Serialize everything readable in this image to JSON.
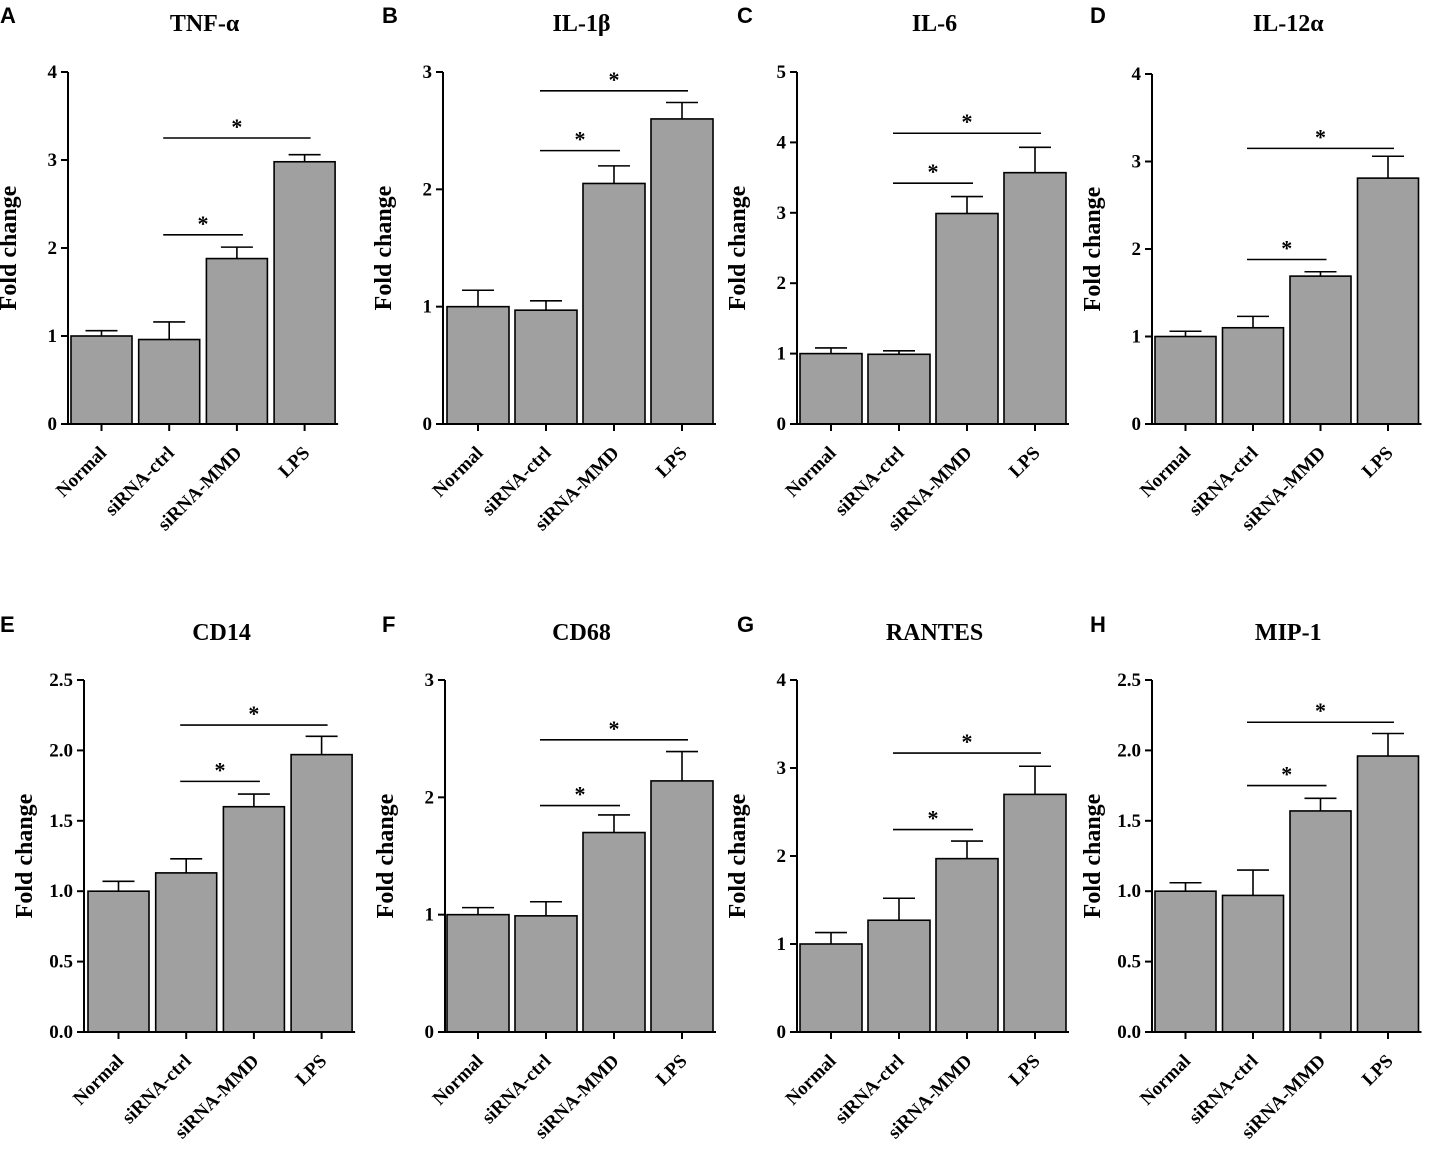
{
  "chart_data": [
    {
      "letter": "A",
      "type": "bar",
      "title": "TNF-α",
      "ylabel": "Fold change",
      "ylim": [
        0,
        4
      ],
      "yticks": [
        "0",
        "1",
        "2",
        "3",
        "4"
      ],
      "categories": [
        "Normal",
        "siRNA-ctrl",
        "siRNA-MMD",
        "LPS"
      ],
      "values": [
        1.0,
        0.96,
        1.88,
        2.98
      ],
      "errors": [
        0.06,
        0.2,
        0.13,
        0.08
      ],
      "significance": [
        {
          "from": 1,
          "to": 2,
          "y": 2.15,
          "label": "*"
        },
        {
          "from": 1,
          "to": 3,
          "y": 3.25,
          "label": "*"
        }
      ]
    },
    {
      "letter": "B",
      "type": "bar",
      "title": "IL-1β",
      "ylabel": "Fold change",
      "ylim": [
        0,
        3
      ],
      "yticks": [
        "0",
        "1",
        "2",
        "3"
      ],
      "categories": [
        "Normal",
        "siRNA-ctrl",
        "siRNA-MMD",
        "LPS"
      ],
      "values": [
        1.0,
        0.97,
        2.05,
        2.6
      ],
      "errors": [
        0.14,
        0.08,
        0.15,
        0.14
      ],
      "significance": [
        {
          "from": 1,
          "to": 2,
          "y": 2.33,
          "label": "*"
        },
        {
          "from": 1,
          "to": 3,
          "y": 2.84,
          "label": "*"
        }
      ]
    },
    {
      "letter": "C",
      "type": "bar",
      "title": "IL-6",
      "ylabel": "Fold change",
      "ylim": [
        0,
        5
      ],
      "yticks": [
        "0",
        "1",
        "2",
        "3",
        "4",
        "5"
      ],
      "categories": [
        "Normal",
        "siRNA-ctrl",
        "siRNA-MMD",
        "LPS"
      ],
      "values": [
        1.0,
        0.99,
        2.99,
        3.57
      ],
      "errors": [
        0.08,
        0.05,
        0.24,
        0.36
      ],
      "significance": [
        {
          "from": 1,
          "to": 2,
          "y": 3.42,
          "label": "*"
        },
        {
          "from": 1,
          "to": 3,
          "y": 4.13,
          "label": "*"
        }
      ]
    },
    {
      "letter": "D",
      "type": "bar",
      "title": "IL-12α",
      "ylabel": "Fold change",
      "ylim": [
        0,
        4
      ],
      "yticks": [
        "0",
        "1",
        "2",
        "3",
        "4"
      ],
      "categories": [
        "Normal",
        "siRNA-ctrl",
        "siRNA-MMD",
        "LPS"
      ],
      "values": [
        1.0,
        1.1,
        1.69,
        2.81
      ],
      "errors": [
        0.06,
        0.13,
        0.05,
        0.25
      ],
      "significance": [
        {
          "from": 1,
          "to": 2,
          "y": 1.88,
          "label": "*"
        },
        {
          "from": 1,
          "to": 3,
          "y": 3.15,
          "label": "*"
        }
      ]
    },
    {
      "letter": "E",
      "type": "bar",
      "title": "CD14",
      "ylabel": "Fold change",
      "ylim": [
        0,
        2.5
      ],
      "yticks": [
        "0.0",
        "0.5",
        "1.0",
        "1.5",
        "2.0",
        "2.5"
      ],
      "categories": [
        "Normal",
        "siRNA-ctrl",
        "siRNA-MMD",
        "LPS"
      ],
      "values": [
        1.0,
        1.13,
        1.6,
        1.97
      ],
      "errors": [
        0.07,
        0.1,
        0.09,
        0.13
      ],
      "significance": [
        {
          "from": 1,
          "to": 2,
          "y": 1.78,
          "label": "*"
        },
        {
          "from": 1,
          "to": 3,
          "y": 2.18,
          "label": "*"
        }
      ]
    },
    {
      "letter": "F",
      "type": "bar",
      "title": "CD68",
      "ylabel": "Fold change",
      "ylim": [
        0,
        3
      ],
      "yticks": [
        "0",
        "1",
        "2",
        "3"
      ],
      "categories": [
        "Normal",
        "siRNA-ctrl",
        "siRNA-MMD",
        "LPS"
      ],
      "values": [
        1.0,
        0.99,
        1.7,
        2.14
      ],
      "errors": [
        0.06,
        0.12,
        0.15,
        0.25
      ],
      "significance": [
        {
          "from": 1,
          "to": 2,
          "y": 1.93,
          "label": "*"
        },
        {
          "from": 1,
          "to": 3,
          "y": 2.49,
          "label": "*"
        }
      ]
    },
    {
      "letter": "G",
      "type": "bar",
      "title": "RANTES",
      "ylabel": "Fold change",
      "ylim": [
        0,
        4
      ],
      "yticks": [
        "0",
        "1",
        "2",
        "3",
        "4"
      ],
      "categories": [
        "Normal",
        "siRNA-ctrl",
        "siRNA-MMD",
        "LPS"
      ],
      "values": [
        1.0,
        1.27,
        1.97,
        2.7
      ],
      "errors": [
        0.13,
        0.25,
        0.2,
        0.32
      ],
      "significance": [
        {
          "from": 1,
          "to": 2,
          "y": 2.3,
          "label": "*"
        },
        {
          "from": 1,
          "to": 3,
          "y": 3.17,
          "label": "*"
        }
      ]
    },
    {
      "letter": "H",
      "type": "bar",
      "title": "MIP-1",
      "ylabel": "Fold change",
      "ylim": [
        0,
        2.5
      ],
      "yticks": [
        "0.0",
        "0.5",
        "1.0",
        "1.5",
        "2.0",
        "2.5"
      ],
      "categories": [
        "Normal",
        "siRNA-ctrl",
        "siRNA-MMD",
        "LPS"
      ],
      "values": [
        1.0,
        0.97,
        1.57,
        1.96
      ],
      "errors": [
        0.06,
        0.18,
        0.09,
        0.16
      ],
      "significance": [
        {
          "from": 1,
          "to": 2,
          "y": 1.75,
          "label": "*"
        },
        {
          "from": 1,
          "to": 3,
          "y": 2.2,
          "label": "*"
        }
      ]
    }
  ]
}
